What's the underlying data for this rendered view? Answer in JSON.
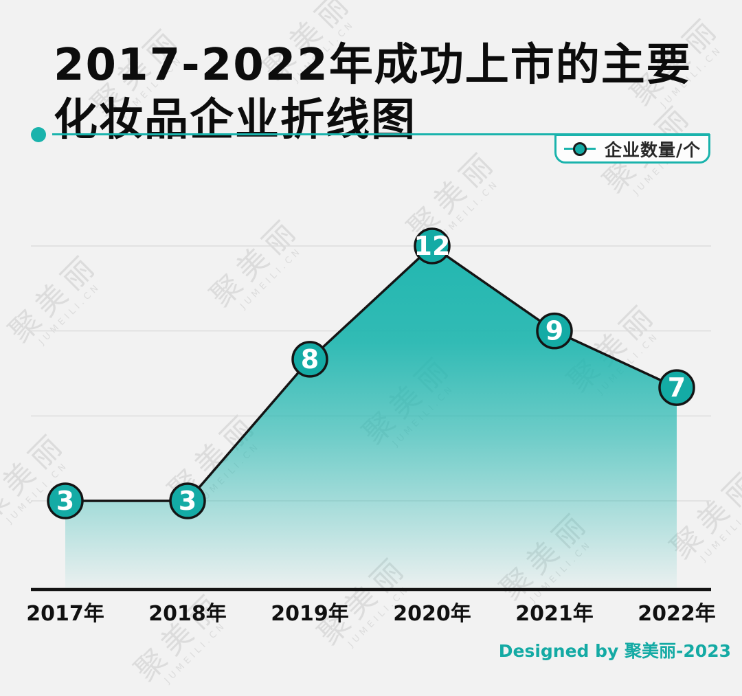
{
  "title": {
    "line1": "2017-2022年成功上市的主要",
    "line2": "化妆品企业折线图"
  },
  "legend": {
    "label": "企业数量/个"
  },
  "watermark": {
    "line1": "聚美丽",
    "line2": "JUMEILI.CN"
  },
  "footer": {
    "credit": "Designed by 聚美丽-2023"
  },
  "colors": {
    "background": "#f2f2f2",
    "accent": "#1ab3ac",
    "point_fill": "#14aba5",
    "area_top": "#1cb5ae",
    "line": "#141414",
    "grid": "#dcdcdc",
    "point_label": "#ffffff",
    "credit": "#14aaa4",
    "title_text": "#0c0c0c"
  },
  "chart_data": {
    "type": "line",
    "title": "2017-2022年成功上市的主要化妆品企业折线图",
    "categories": [
      "2017年",
      "2018年",
      "2019年",
      "2020年",
      "2021年",
      "2022年"
    ],
    "series": [
      {
        "name": "企业数量/个",
        "values": [
          3,
          3,
          8,
          12,
          9,
          7
        ]
      }
    ],
    "xlabel": "",
    "ylabel": "企业数量/个",
    "ylim": [
      3,
      12
    ],
    "gridline_values": [
      3,
      6,
      9,
      12
    ],
    "grid": "horizontal",
    "legend_position": "top-right",
    "area_fill": true,
    "point_labels_visible": true
  }
}
